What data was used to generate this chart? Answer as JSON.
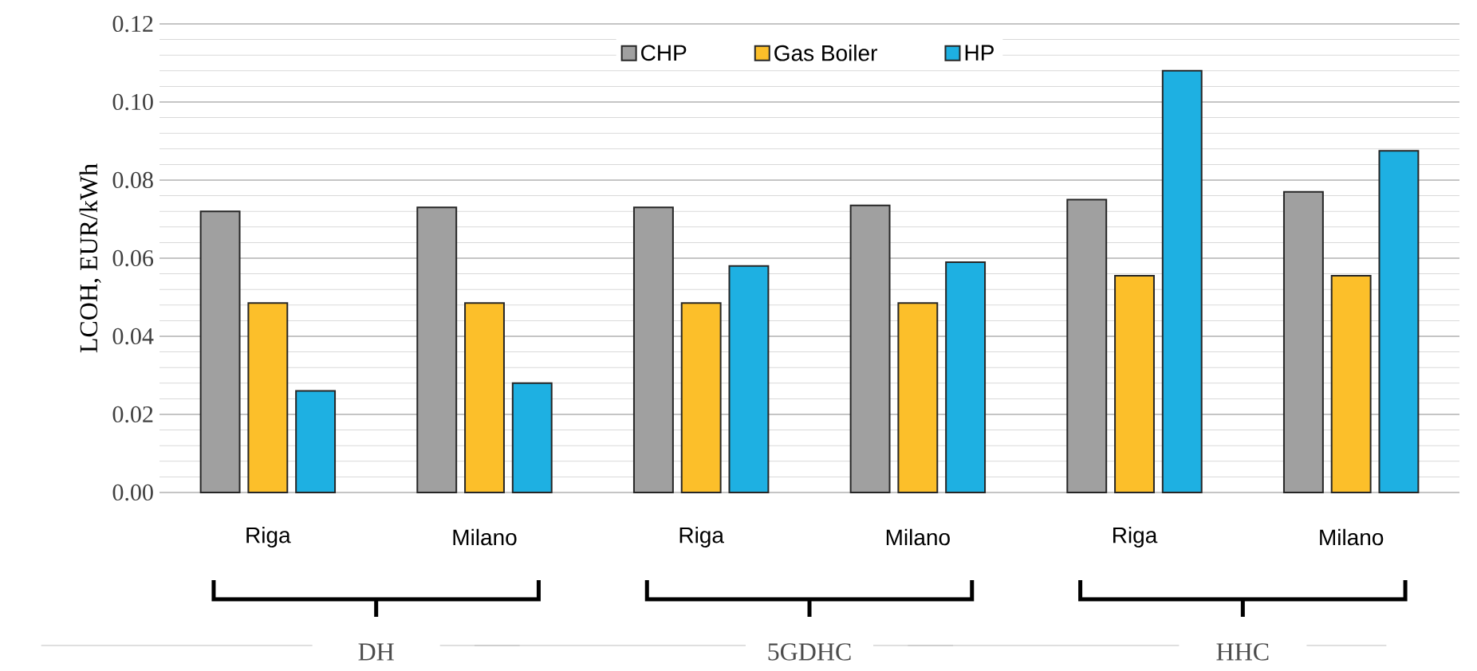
{
  "chart_data": {
    "type": "bar",
    "ylabel": "LCOH, EUR/kWh",
    "categories": [
      "Riga",
      "Milano",
      "Riga",
      "Milano",
      "Riga",
      "Milano"
    ],
    "series": [
      {
        "name": "CHP",
        "color": "#a0a0a0",
        "values": [
          0.072,
          0.073,
          0.073,
          0.0735,
          0.075,
          0.077
        ]
      },
      {
        "name": "Gas Boiler",
        "color": "#fcbf2a",
        "values": [
          0.0485,
          0.0485,
          0.0485,
          0.0485,
          0.0555,
          0.0555
        ]
      },
      {
        "name": "HP",
        "color": "#1eb0e2",
        "values": [
          0.026,
          0.028,
          0.058,
          0.059,
          0.108,
          0.0875
        ]
      }
    ],
    "ylim": [
      0,
      0.12
    ],
    "yticks": [
      {
        "value": 0,
        "label": "0.00"
      },
      {
        "value": 0.02,
        "label": "0.02"
      },
      {
        "value": 0.04,
        "label": "0.04"
      },
      {
        "value": 0.06,
        "label": "0.06"
      },
      {
        "value": 0.08,
        "label": "0.08"
      },
      {
        "value": 0.1,
        "label": "0.10"
      },
      {
        "value": 0.12,
        "label": "0.12"
      }
    ],
    "grid": "y",
    "legend": "top",
    "annotations": [
      "DH",
      "5GDHC",
      "HHC"
    ]
  }
}
